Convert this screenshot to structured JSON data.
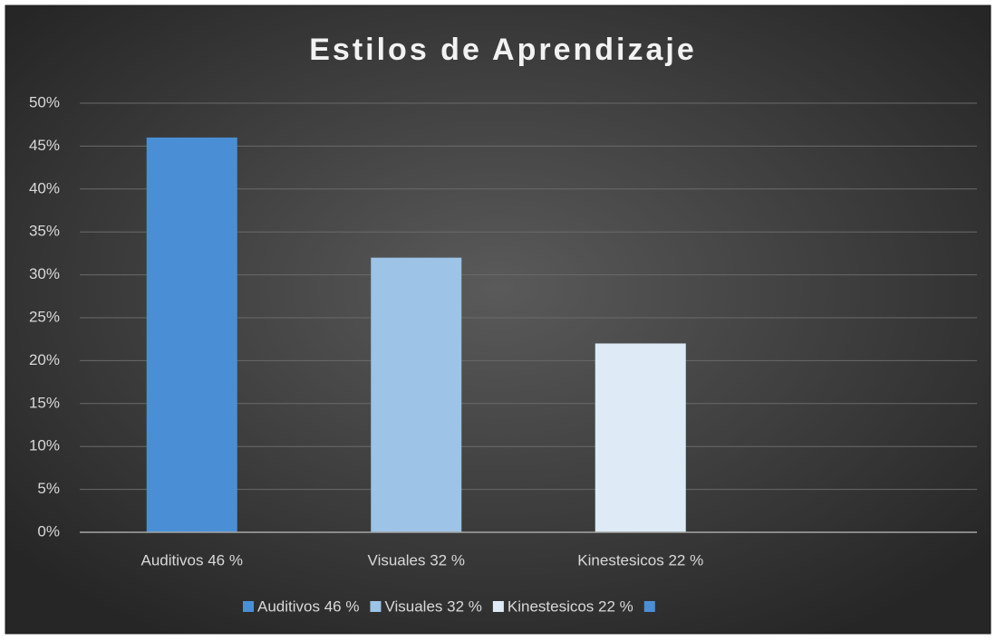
{
  "chart_data": {
    "type": "bar",
    "title": "Estilos de Aprendizaje",
    "categories": [
      "Auditivos 46 %",
      "Visuales 32 %",
      "Kinestesicos 22 %",
      null
    ],
    "values": [
      46,
      32,
      22,
      null
    ],
    "colors": [
      "#4a8fd6",
      "#9dc3e6",
      "#deebf7",
      "#4a8fd6"
    ],
    "ylim": [
      0,
      50
    ],
    "yticks": [
      {
        "value": 0,
        "label": "0%"
      },
      {
        "value": 5,
        "label": "5%"
      },
      {
        "value": 10,
        "label": "10%"
      },
      {
        "value": 15,
        "label": "15%"
      },
      {
        "value": 20,
        "label": "20%"
      },
      {
        "value": 25,
        "label": "25%"
      },
      {
        "value": 30,
        "label": "30%"
      },
      {
        "value": 35,
        "label": "35%"
      },
      {
        "value": 40,
        "label": "40%"
      },
      {
        "value": 45,
        "label": "45%"
      },
      {
        "value": 50,
        "label": "50%"
      }
    ],
    "grid": true,
    "legend": "bottom"
  }
}
